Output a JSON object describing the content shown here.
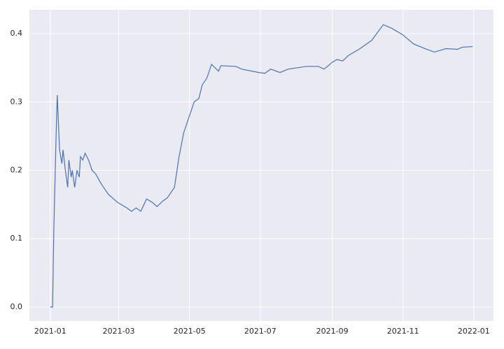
{
  "chart_data": {
    "type": "line",
    "x": [
      "2021-01-01",
      "2021-01-03",
      "2021-01-04",
      "2021-01-05",
      "2021-01-06",
      "2021-01-07",
      "2021-01-08",
      "2021-01-09",
      "2021-01-10",
      "2021-01-11",
      "2021-01-12",
      "2021-01-14",
      "2021-01-16",
      "2021-01-17",
      "2021-01-19",
      "2021-01-20",
      "2021-01-22",
      "2021-01-24",
      "2021-01-26",
      "2021-01-27",
      "2021-01-29",
      "2021-01-31",
      "2021-02-03",
      "2021-02-06",
      "2021-02-09",
      "2021-02-14",
      "2021-02-20",
      "2021-02-28",
      "2021-03-08",
      "2021-03-12",
      "2021-03-16",
      "2021-03-20",
      "2021-03-25",
      "2021-03-30",
      "2021-04-03",
      "2021-04-08",
      "2021-04-12",
      "2021-04-18",
      "2021-04-22",
      "2021-04-26",
      "2021-05-01",
      "2021-05-05",
      "2021-05-09",
      "2021-05-12",
      "2021-05-16",
      "2021-05-20",
      "2021-05-26",
      "2021-05-28",
      "2021-06-10",
      "2021-06-15",
      "2021-06-30",
      "2021-07-05",
      "2021-07-10",
      "2021-07-18",
      "2021-07-25",
      "2021-08-10",
      "2021-08-20",
      "2021-08-25",
      "2021-09-01",
      "2021-09-05",
      "2021-09-10",
      "2021-09-15",
      "2021-09-25",
      "2021-10-05",
      "2021-10-15",
      "2021-10-22",
      "2021-11-01",
      "2021-11-10",
      "2021-11-20",
      "2021-11-28",
      "2021-12-08",
      "2021-12-18",
      "2021-12-22",
      "2021-12-31"
    ],
    "series": [
      {
        "color": "#4c72b0",
        "values": [
          0.0,
          0.0,
          0.11,
          0.18,
          0.25,
          0.31,
          0.27,
          0.23,
          0.22,
          0.21,
          0.23,
          0.2,
          0.175,
          0.215,
          0.19,
          0.2,
          0.175,
          0.2,
          0.19,
          0.22,
          0.215,
          0.225,
          0.215,
          0.2,
          0.195,
          0.18,
          0.165,
          0.153,
          0.145,
          0.14,
          0.145,
          0.14,
          0.158,
          0.153,
          0.147,
          0.155,
          0.16,
          0.175,
          0.22,
          0.255,
          0.28,
          0.3,
          0.305,
          0.325,
          0.335,
          0.355,
          0.345,
          0.353,
          0.352,
          0.348,
          0.343,
          0.342,
          0.348,
          0.343,
          0.348,
          0.352,
          0.352,
          0.348,
          0.358,
          0.362,
          0.36,
          0.368,
          0.378,
          0.39,
          0.413,
          0.408,
          0.398,
          0.385,
          0.378,
          0.373,
          0.378,
          0.377,
          0.38,
          0.381
        ]
      }
    ],
    "xlim": [
      "2020-12-14",
      "2022-01-18"
    ],
    "xticks": [
      {
        "value": "2021-01-01",
        "label": "2021-01"
      },
      {
        "value": "2021-03-01",
        "label": "2021-03"
      },
      {
        "value": "2021-05-01",
        "label": "2021-05"
      },
      {
        "value": "2021-07-01",
        "label": "2021-07"
      },
      {
        "value": "2021-09-01",
        "label": "2021-09"
      },
      {
        "value": "2021-11-01",
        "label": "2021-11"
      },
      {
        "value": "2022-01-01",
        "label": "2022-01"
      }
    ],
    "ylim": [
      -0.0205,
      0.4348
    ],
    "yticks": [
      {
        "value": 0,
        "label": "0.0"
      },
      0.1,
      0.2,
      0.3,
      0.4
    ],
    "grid": true
  }
}
